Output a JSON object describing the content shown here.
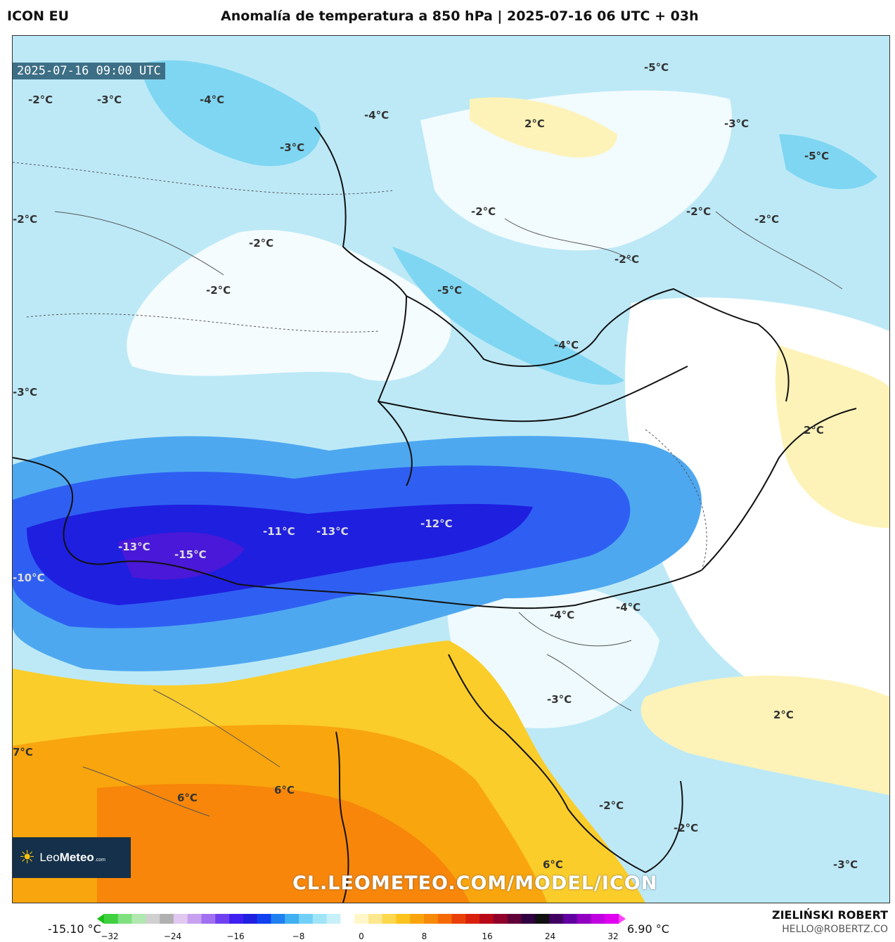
{
  "header": {
    "model": "ICON EU",
    "title": "Anomalía de temperatura a 850 hPa | 2025-07-16 06 UTC + 03h"
  },
  "map": {
    "valid_time": "2025-07-16 09:00 UTC",
    "labels": [
      "-2°C",
      "-3°C",
      "-4°C",
      "-3°C",
      "-4°C",
      "-5°C",
      "-3°C",
      "-5°C",
      "2°C",
      "-2°C",
      "-2°C",
      "-2°C",
      "-2°C",
      "-2°C",
      "-2°C",
      "-2°C",
      "-5°C",
      "-4°C",
      "-3°C",
      "2°C",
      "-11°C",
      "-13°C",
      "-12°C",
      "-13°C",
      "-15°C",
      "-10°C",
      "-4°C",
      "-4°C",
      "-3°C",
      "2°C",
      "7°C",
      "6°C",
      "6°C",
      "-2°C",
      "-2°C",
      "6°C",
      "-3°C"
    ],
    "watermark": "CL.LEOMETEO.COM/MODEL/ICON",
    "logo": {
      "name_light": "Leo",
      "name_bold": "Meteo",
      "domain": ".com"
    }
  },
  "colorbar": {
    "min_label": "-15.10 °C",
    "max_label": "6.90 °C",
    "ticks": [
      "−32",
      "−24",
      "−16",
      "−8",
      "0",
      "8",
      "16",
      "24",
      "32"
    ],
    "colors": [
      "#18c018",
      "#40d040",
      "#80e080",
      "#b0e8b0",
      "#d0d0d0",
      "#b0b0b0",
      "#e0c8f0",
      "#c8a0f0",
      "#a070f0",
      "#7040f0",
      "#4020f0",
      "#2020e0",
      "#1040f0",
      "#2080f0",
      "#40b0f0",
      "#70d0f8",
      "#a0e4f8",
      "#c8f0fa",
      "#ffffff",
      "#fff7c8",
      "#fde890",
      "#fcd84c",
      "#fbc31c",
      "#f9a40e",
      "#f78a08",
      "#f56a06",
      "#e84008",
      "#d8200c",
      "#b80818",
      "#90002a",
      "#600038",
      "#300040",
      "#101010",
      "#400060",
      "#6000a0",
      "#9000c0",
      "#c000e0",
      "#e000f0",
      "#ff40ff"
    ]
  },
  "credits": {
    "author": "ZIELIŃSKI ROBERT",
    "email": "HELLO@ROBERTZ.CO"
  }
}
